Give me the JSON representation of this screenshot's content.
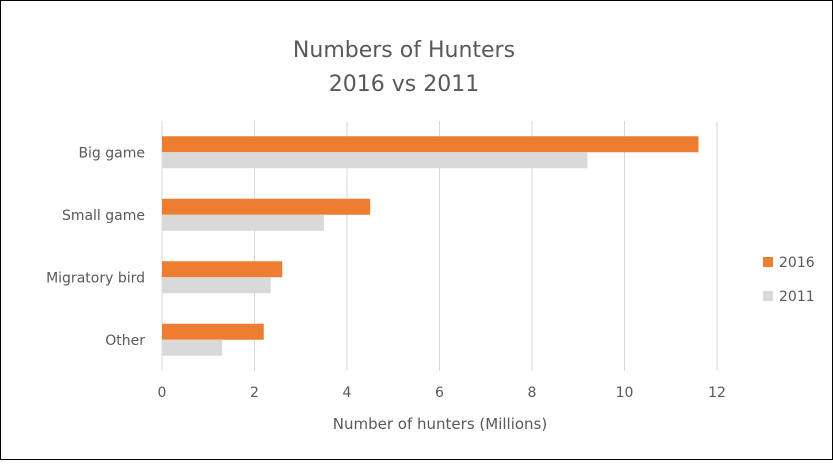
{
  "chart_data": {
    "type": "bar",
    "orientation": "horizontal",
    "title_lines": [
      "Numbers of Hunters",
      "2016 vs 2011"
    ],
    "categories": [
      "Big game",
      "Small game",
      "Migratory bird",
      "Other"
    ],
    "series": [
      {
        "name": "2016",
        "color": "#ED7D31",
        "values": [
          11.6,
          4.5,
          2.6,
          2.2
        ]
      },
      {
        "name": "2011",
        "color": "#D9D9D9",
        "values": [
          9.2,
          3.5,
          2.35,
          1.3
        ]
      }
    ],
    "xlabel": "Number of hunters (Millions)",
    "ylabel": "",
    "xlim": [
      0,
      12
    ],
    "xticks": [
      "0",
      "2",
      "4",
      "6",
      "8",
      "10",
      "12"
    ],
    "grid": true,
    "legend_position": "right"
  }
}
